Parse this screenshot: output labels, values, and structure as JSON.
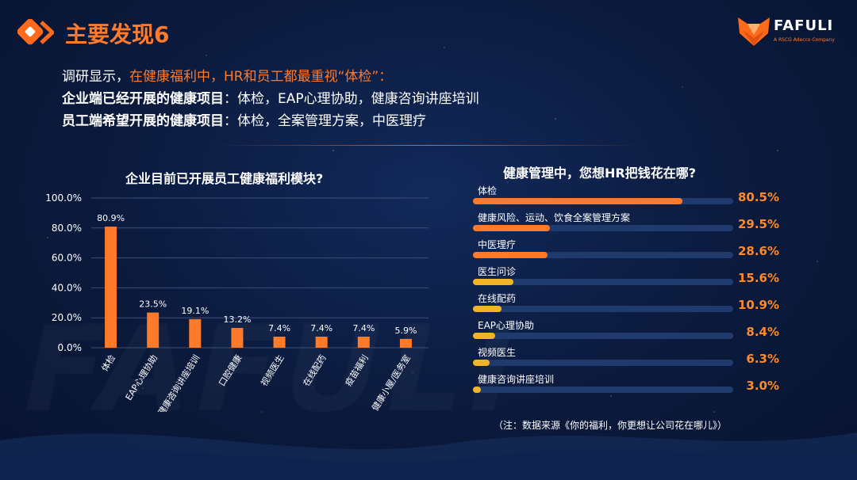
{
  "header": {
    "title": "主要发现6",
    "logo_name": "FAFULI",
    "logo_sub": "A RSCG Adecco Company",
    "watermark": "FAFULI"
  },
  "summary": {
    "line1_prefix": "调研显示，",
    "line1_highlight": "在健康福利中，HR和员工都最重视“体检”：",
    "line2_bold": "企业端已经开展的健康项目",
    "line2_rest": "：体检，EAP心理协助，健康咨询讲座培训",
    "line3_bold": "员工端希望开展的健康项目",
    "line3_rest": "：体检，全案管理方案，中医理疗"
  },
  "note": "（注：数据来源《你的福利，你更想让公司花在哪儿》）",
  "colors": {
    "orange": "#ff7a2a",
    "yellow": "#f0b429",
    "track": "#1f3b6e"
  },
  "chart_data": [
    {
      "type": "bar",
      "title": "企业目前已开展员工健康福利模块?",
      "categories": [
        "体检",
        "EAP心理协助",
        "健康咨询讲座培训",
        "口腔健康",
        "视频医生",
        "在线配药",
        "疫苗福利",
        "健康小屋/医务室"
      ],
      "values": [
        80.9,
        23.5,
        19.1,
        13.2,
        7.4,
        7.4,
        7.4,
        5.9
      ],
      "value_labels": [
        "80.9%",
        "23.5%",
        "19.1%",
        "13.2%",
        "7.4%",
        "7.4%",
        "7.4%",
        "5.9%"
      ],
      "ylim": [
        0,
        100
      ],
      "yticks": [
        "0.0%",
        "20.0%",
        "40.0%",
        "60.0%",
        "80.0%",
        "100.0%"
      ],
      "grid": true,
      "color": "#ff7a2a"
    },
    {
      "type": "bar",
      "orientation": "horizontal",
      "title": "健康管理中，您想HR把钱花在哪?",
      "categories": [
        "体检",
        "健康风险、运动、饮食全案管理方案",
        "中医理疗",
        "医生问诊",
        "在线配药",
        "EAP心理协助",
        "视频医生",
        "健康咨询讲座培训"
      ],
      "values": [
        80.5,
        29.5,
        28.6,
        15.6,
        10.9,
        8.4,
        6.3,
        3.0
      ],
      "value_labels": [
        "80.5%",
        "29.5%",
        "28.6%",
        "15.6%",
        "10.9%",
        "8.4%",
        "6.3%",
        "3.0%"
      ],
      "bar_colors": [
        "#ff7a2a",
        "#ff7a2a",
        "#ff7a2a",
        "#f0b429",
        "#f0b429",
        "#f0b429",
        "#f0b429",
        "#f0b429"
      ],
      "xlim": [
        0,
        100
      ]
    }
  ]
}
